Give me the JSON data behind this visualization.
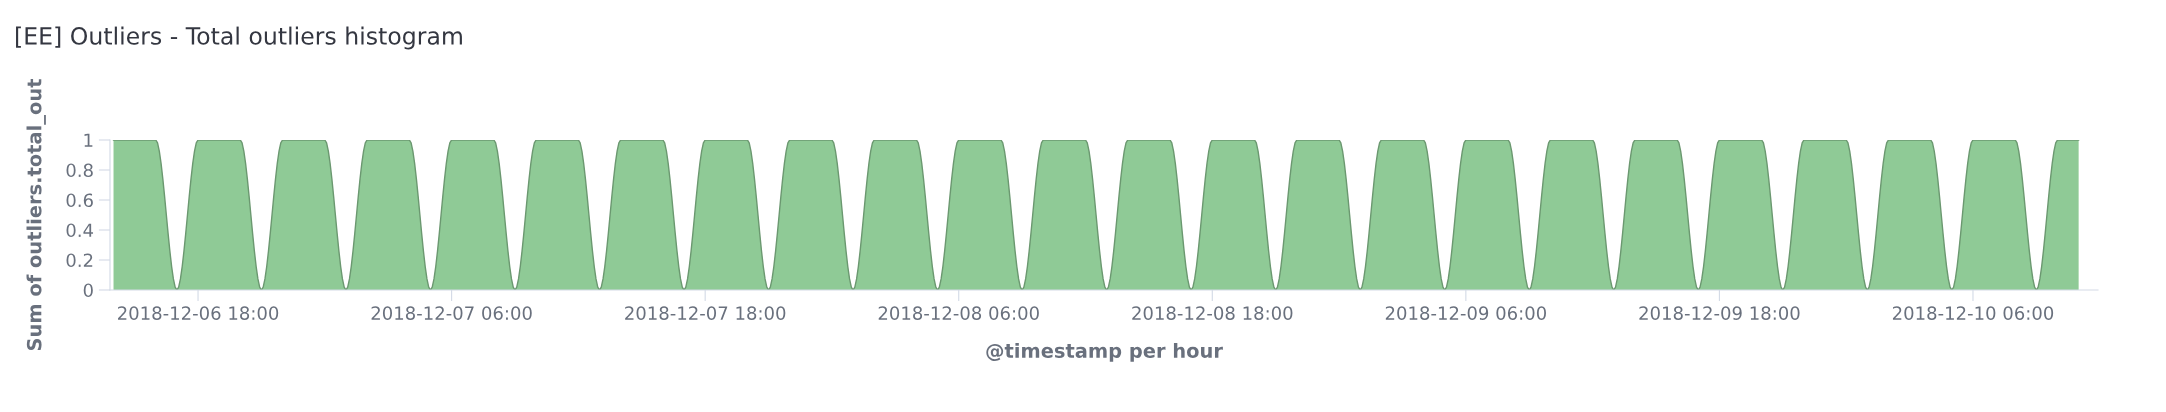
{
  "chart_data": {
    "type": "area",
    "title": "[EE] Outliers - Total outliers histogram",
    "xlabel": "@timestamp per hour",
    "ylabel": "Sum of outliers.total_out",
    "x": [
      "2018-12-06T14:00",
      "2018-12-06T15:00",
      "2018-12-06T16:00",
      "2018-12-06T17:00",
      "2018-12-06T18:00",
      "2018-12-06T19:00",
      "2018-12-06T20:00",
      "2018-12-06T21:00",
      "2018-12-06T22:00",
      "2018-12-06T23:00",
      "2018-12-07T00:00",
      "2018-12-07T01:00",
      "2018-12-07T02:00",
      "2018-12-07T03:00",
      "2018-12-07T04:00",
      "2018-12-07T05:00",
      "2018-12-07T06:00",
      "2018-12-07T07:00",
      "2018-12-07T08:00",
      "2018-12-07T09:00",
      "2018-12-07T10:00",
      "2018-12-07T11:00",
      "2018-12-07T12:00",
      "2018-12-07T13:00",
      "2018-12-07T14:00",
      "2018-12-07T15:00",
      "2018-12-07T16:00",
      "2018-12-07T17:00",
      "2018-12-07T18:00",
      "2018-12-07T19:00",
      "2018-12-07T20:00",
      "2018-12-07T21:00",
      "2018-12-07T22:00",
      "2018-12-07T23:00",
      "2018-12-08T00:00",
      "2018-12-08T01:00",
      "2018-12-08T02:00",
      "2018-12-08T03:00",
      "2018-12-08T04:00",
      "2018-12-08T05:00",
      "2018-12-08T06:00",
      "2018-12-08T07:00",
      "2018-12-08T08:00",
      "2018-12-08T09:00",
      "2018-12-08T10:00",
      "2018-12-08T11:00",
      "2018-12-08T12:00",
      "2018-12-08T13:00",
      "2018-12-08T14:00",
      "2018-12-08T15:00",
      "2018-12-08T16:00",
      "2018-12-08T17:00",
      "2018-12-08T18:00",
      "2018-12-08T19:00",
      "2018-12-08T20:00",
      "2018-12-08T21:00",
      "2018-12-08T22:00",
      "2018-12-08T23:00",
      "2018-12-09T00:00",
      "2018-12-09T01:00",
      "2018-12-09T02:00",
      "2018-12-09T03:00",
      "2018-12-09T04:00",
      "2018-12-09T05:00",
      "2018-12-09T06:00",
      "2018-12-09T07:00",
      "2018-12-09T08:00",
      "2018-12-09T09:00",
      "2018-12-09T10:00",
      "2018-12-09T11:00",
      "2018-12-09T12:00",
      "2018-12-09T13:00",
      "2018-12-09T14:00",
      "2018-12-09T15:00",
      "2018-12-09T16:00",
      "2018-12-09T17:00",
      "2018-12-09T18:00",
      "2018-12-09T19:00",
      "2018-12-09T20:00",
      "2018-12-09T21:00",
      "2018-12-09T22:00",
      "2018-12-09T23:00",
      "2018-12-10T00:00",
      "2018-12-10T01:00",
      "2018-12-10T02:00",
      "2018-12-10T03:00",
      "2018-12-10T04:00",
      "2018-12-10T05:00",
      "2018-12-10T06:00",
      "2018-12-10T07:00",
      "2018-12-10T08:00",
      "2018-12-10T09:00",
      "2018-12-10T10:00",
      "2018-12-10T11:00"
    ],
    "series": [
      {
        "color": "#8fca96",
        "values": [
          1,
          1,
          1,
          0,
          1,
          1,
          1,
          0,
          1,
          1,
          1,
          0,
          1,
          1,
          1,
          0,
          1,
          1,
          1,
          0,
          1,
          1,
          1,
          0,
          1,
          1,
          1,
          0,
          1,
          1,
          1,
          0,
          1,
          1,
          1,
          0,
          1,
          1,
          1,
          0,
          1,
          1,
          1,
          0,
          1,
          1,
          1,
          0,
          1,
          1,
          1,
          0,
          1,
          1,
          1,
          0,
          1,
          1,
          1,
          0,
          1,
          1,
          1,
          0,
          1,
          1,
          1,
          0,
          1,
          1,
          1,
          0,
          1,
          1,
          1,
          0,
          1,
          1,
          1,
          0,
          1,
          1,
          1,
          0,
          1,
          1,
          1,
          0,
          1,
          1,
          1,
          0,
          1,
          1
        ]
      }
    ],
    "xlim": [
      "2018-12-06T13:50",
      "2018-12-10T11:55"
    ],
    "xticks": [
      {
        "value": "2018-12-06T18:00",
        "label": "2018-12-06 18:00"
      },
      {
        "value": "2018-12-07T06:00",
        "label": "2018-12-07 06:00"
      },
      {
        "value": "2018-12-07T18:00",
        "label": "2018-12-07 18:00"
      },
      {
        "value": "2018-12-08T06:00",
        "label": "2018-12-08 06:00"
      },
      {
        "value": "2018-12-08T18:00",
        "label": "2018-12-08 18:00"
      },
      {
        "value": "2018-12-09T06:00",
        "label": "2018-12-09 06:00"
      },
      {
        "value": "2018-12-09T18:00",
        "label": "2018-12-09 18:00"
      },
      {
        "value": "2018-12-10T06:00",
        "label": "2018-12-10 06:00"
      }
    ],
    "ylim": [
      0,
      1
    ],
    "yticks": [
      0,
      0.2,
      0.4,
      0.6,
      0.8,
      1
    ]
  }
}
